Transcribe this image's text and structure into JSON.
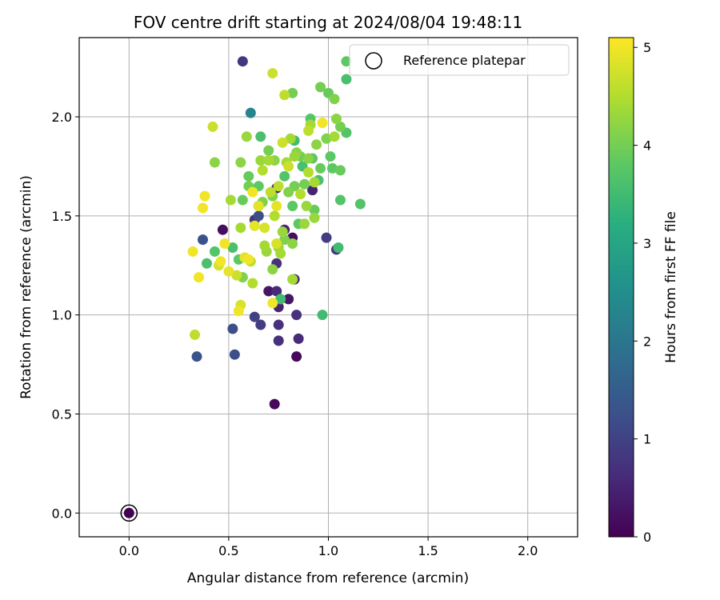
{
  "chart_data": {
    "type": "scatter",
    "title": "FOV centre drift starting at 2024/08/04 19:48:11",
    "xlabel": "Angular distance from reference (arcmin)",
    "ylabel": "Rotation from reference (arcmin)",
    "xlim": [
      -0.25,
      2.25
    ],
    "ylim": [
      -0.12,
      2.4
    ],
    "x_ticks": [
      0.0,
      0.5,
      1.0,
      1.5,
      2.0
    ],
    "x_tick_labels": [
      "0.0",
      "0.5",
      "1.0",
      "1.5",
      "2.0"
    ],
    "y_ticks": [
      0.0,
      0.5,
      1.0,
      1.5,
      2.0
    ],
    "y_tick_labels": [
      "0.0",
      "0.5",
      "1.0",
      "1.5",
      "2.0"
    ],
    "grid": true,
    "legend": {
      "placement": "top-right",
      "entries": [
        "Reference platepar"
      ]
    },
    "reference_point": {
      "x": 0.0,
      "y": 0.0,
      "hours": 0.0,
      "label": "Reference platepar"
    },
    "colorbar": {
      "label": "Hours from first FF file",
      "colormap": "viridis",
      "range": [
        0,
        5.1
      ],
      "ticks": [
        0,
        1,
        2,
        3,
        4,
        5
      ],
      "tick_labels": [
        "0",
        "1",
        "2",
        "3",
        "4",
        "5"
      ]
    },
    "points": [
      [
        0.73,
        0.55,
        0.1
      ],
      [
        0.84,
        0.79,
        0.1
      ],
      [
        0.85,
        0.88,
        0.6
      ],
      [
        0.75,
        0.87,
        0.7
      ],
      [
        0.75,
        0.95,
        0.7
      ],
      [
        0.66,
        0.95,
        0.9
      ],
      [
        0.63,
        0.99,
        1.0
      ],
      [
        0.84,
        1.0,
        0.7
      ],
      [
        0.52,
        0.93,
        1.2
      ],
      [
        0.34,
        0.79,
        1.3
      ],
      [
        0.53,
        0.8,
        1.2
      ],
      [
        0.8,
        1.08,
        0.3
      ],
      [
        0.75,
        1.04,
        0.5
      ],
      [
        0.7,
        1.12,
        0.3
      ],
      [
        0.74,
        1.12,
        0.6
      ],
      [
        0.83,
        1.18,
        0.6
      ],
      [
        0.74,
        1.26,
        0.7
      ],
      [
        0.82,
        1.39,
        0.2
      ],
      [
        0.78,
        1.43,
        0.5
      ],
      [
        0.99,
        1.39,
        0.9
      ],
      [
        1.04,
        1.33,
        0.8
      ],
      [
        0.37,
        1.38,
        1.3
      ],
      [
        0.47,
        1.43,
        0.2
      ],
      [
        0.92,
        1.63,
        0.5
      ],
      [
        0.74,
        1.64,
        0.4
      ],
      [
        0.63,
        1.48,
        0.8
      ],
      [
        0.65,
        1.55,
        1.1
      ],
      [
        0.65,
        1.5,
        1.2
      ],
      [
        0.61,
        2.02,
        2.3
      ],
      [
        0.57,
        2.28,
        0.8
      ],
      [
        0.35,
        1.19,
        5.0
      ],
      [
        0.33,
        0.9,
        4.6
      ],
      [
        0.55,
        1.02,
        5.0
      ],
      [
        0.56,
        1.05,
        4.8
      ],
      [
        0.5,
        1.22,
        4.9
      ],
      [
        0.54,
        1.2,
        4.7
      ],
      [
        0.57,
        1.19,
        4.1
      ],
      [
        0.45,
        1.25,
        4.8
      ],
      [
        0.46,
        1.27,
        5.0
      ],
      [
        0.55,
        1.28,
        3.8
      ],
      [
        0.58,
        1.29,
        4.9
      ],
      [
        0.6,
        1.28,
        5.0
      ],
      [
        0.61,
        1.27,
        4.6
      ],
      [
        0.62,
        1.16,
        4.5
      ],
      [
        0.32,
        1.32,
        5.0
      ],
      [
        0.37,
        1.54,
        5.0
      ],
      [
        0.38,
        1.6,
        5.0
      ],
      [
        0.48,
        1.36,
        5.0
      ],
      [
        0.39,
        1.26,
        3.6
      ],
      [
        0.43,
        1.32,
        3.7
      ],
      [
        0.52,
        1.34,
        3.6
      ],
      [
        0.56,
        1.44,
        4.4
      ],
      [
        0.51,
        1.58,
        4.4
      ],
      [
        0.57,
        1.58,
        3.9
      ],
      [
        0.42,
        1.95,
        4.7
      ],
      [
        0.43,
        1.77,
        4.2
      ],
      [
        0.56,
        1.77,
        4.2
      ],
      [
        0.59,
        1.9,
        4.3
      ],
      [
        0.6,
        1.7,
        3.9
      ],
      [
        0.6,
        1.65,
        4.0
      ],
      [
        0.62,
        1.62,
        5.0
      ],
      [
        0.63,
        1.45,
        4.9
      ],
      [
        0.65,
        1.55,
        4.9
      ],
      [
        0.65,
        1.65,
        3.8
      ],
      [
        0.66,
        1.78,
        4.3
      ],
      [
        0.66,
        1.9,
        3.6
      ],
      [
        0.67,
        1.57,
        4.1
      ],
      [
        0.67,
        1.73,
        4.5
      ],
      [
        0.68,
        1.44,
        4.8
      ],
      [
        0.68,
        1.35,
        4.4
      ],
      [
        0.69,
        1.32,
        4.3
      ],
      [
        0.7,
        1.83,
        4.0
      ],
      [
        0.7,
        1.78,
        4.4
      ],
      [
        0.71,
        1.62,
        4.6
      ],
      [
        0.72,
        1.06,
        5.0
      ],
      [
        0.72,
        1.23,
        4.2
      ],
      [
        0.72,
        1.6,
        4.1
      ],
      [
        0.73,
        1.78,
        4.2
      ],
      [
        0.73,
        1.5,
        4.5
      ],
      [
        0.74,
        1.55,
        4.9
      ],
      [
        0.74,
        1.36,
        4.8
      ],
      [
        0.75,
        1.34,
        4.3
      ],
      [
        0.75,
        1.65,
        4.6
      ],
      [
        0.76,
        1.08,
        3.5
      ],
      [
        0.76,
        1.31,
        4.4
      ],
      [
        0.77,
        1.87,
        4.7
      ],
      [
        0.77,
        1.42,
        4.3
      ],
      [
        0.78,
        1.7,
        3.7
      ],
      [
        0.78,
        1.38,
        4.1
      ],
      [
        0.79,
        1.77,
        4.4
      ],
      [
        0.8,
        1.75,
        4.7
      ],
      [
        0.8,
        1.62,
        4.1
      ],
      [
        0.81,
        1.89,
        4.4
      ],
      [
        0.82,
        1.55,
        3.8
      ],
      [
        0.82,
        1.18,
        4.4
      ],
      [
        0.82,
        1.36,
        4.2
      ],
      [
        0.83,
        1.65,
        4.0
      ],
      [
        0.83,
        1.8,
        4.3
      ],
      [
        0.84,
        1.82,
        4.2
      ],
      [
        0.85,
        1.46,
        3.8
      ],
      [
        0.86,
        1.61,
        4.5
      ],
      [
        0.86,
        1.8,
        4.0
      ],
      [
        0.87,
        1.75,
        3.6
      ],
      [
        0.88,
        1.66,
        4.0
      ],
      [
        0.88,
        1.46,
        4.3
      ],
      [
        0.89,
        1.55,
        4.3
      ],
      [
        0.9,
        1.93,
        4.6
      ],
      [
        0.9,
        1.72,
        4.5
      ],
      [
        0.91,
        1.96,
        4.4
      ],
      [
        0.91,
        1.99,
        3.7
      ],
      [
        0.92,
        1.79,
        3.8
      ],
      [
        0.93,
        1.67,
        4.4
      ],
      [
        0.93,
        1.49,
        4.3
      ],
      [
        0.93,
        1.53,
        3.9
      ],
      [
        0.94,
        1.86,
        4.2
      ],
      [
        0.95,
        1.68,
        3.6
      ],
      [
        0.96,
        1.74,
        3.9
      ],
      [
        0.96,
        2.15,
        4.0
      ],
      [
        0.97,
        1.97,
        5.0
      ],
      [
        0.97,
        1.0,
        3.5
      ],
      [
        0.99,
        1.89,
        4.1
      ],
      [
        1.0,
        2.12,
        3.9
      ],
      [
        1.01,
        1.8,
        3.8
      ],
      [
        1.02,
        1.74,
        3.8
      ],
      [
        1.03,
        1.9,
        4.4
      ],
      [
        1.03,
        2.09,
        4.1
      ],
      [
        1.04,
        1.99,
        4.2
      ],
      [
        1.05,
        1.34,
        3.5
      ],
      [
        1.06,
        1.73,
        3.9
      ],
      [
        1.06,
        1.58,
        3.7
      ],
      [
        1.06,
        1.95,
        4.0
      ],
      [
        1.09,
        1.92,
        3.7
      ],
      [
        1.09,
        2.19,
        3.6
      ],
      [
        1.09,
        2.28,
        3.8
      ],
      [
        1.16,
        1.56,
        3.7
      ],
      [
        0.72,
        2.22,
        4.7
      ],
      [
        0.78,
        2.11,
        4.6
      ],
      [
        0.82,
        2.12,
        4.0
      ],
      [
        0.83,
        1.88,
        3.5
      ],
      [
        0.9,
        1.79,
        4.2
      ]
    ]
  }
}
